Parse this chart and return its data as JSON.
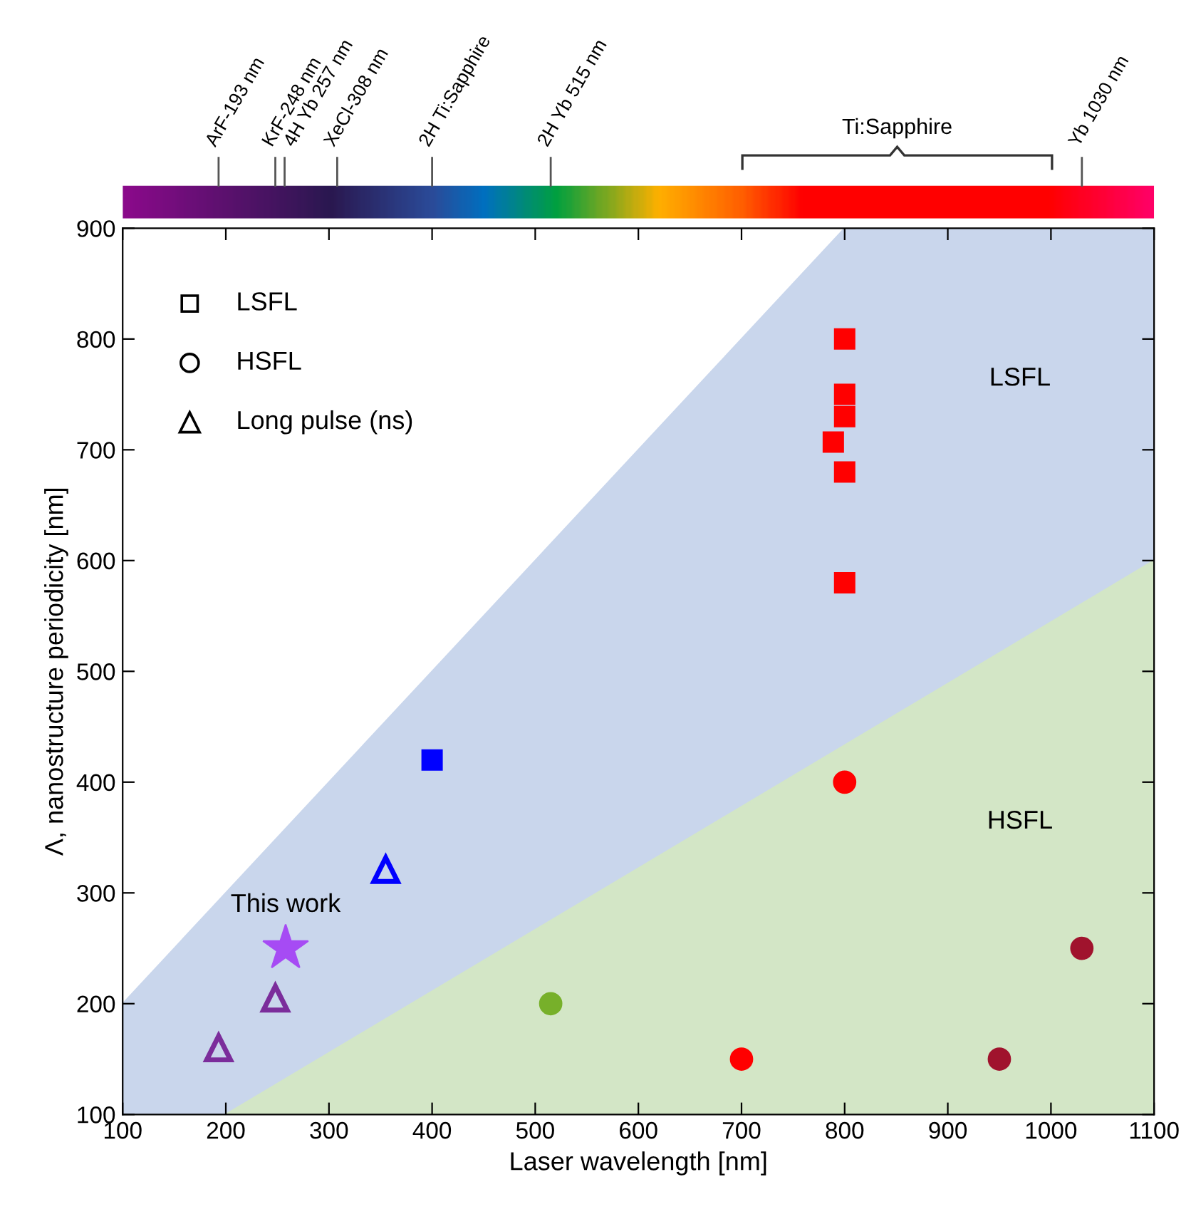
{
  "chart_data": {
    "type": "scatter",
    "xlabel": "Laser wavelength [nm]",
    "ylabel": "Λ, nanostructure periodicity [nm]",
    "xlim": [
      100,
      1100
    ],
    "ylim": [
      100,
      900
    ],
    "xticks": [
      100,
      200,
      300,
      400,
      500,
      600,
      700,
      800,
      900,
      1000,
      1100
    ],
    "yticks": [
      100,
      200,
      300,
      400,
      500,
      600,
      700,
      800,
      900
    ],
    "ref_lines": [
      {
        "axis": "x",
        "value": 193,
        "label": "ArF-193 nm"
      },
      {
        "axis": "x",
        "value": 248,
        "label": "KrF-248 nm"
      },
      {
        "axis": "x",
        "value": 257,
        "label": "4H Yb 257 nm"
      },
      {
        "axis": "x",
        "value": 308,
        "label": "XeCl-308 nm"
      },
      {
        "axis": "x",
        "value": 400,
        "label": "2H Ti:Sapphire"
      },
      {
        "axis": "x",
        "value": 515,
        "label": "2H Yb 515 nm"
      },
      {
        "axis": "x",
        "value": 1030,
        "label": "Yb 1030 nm"
      }
    ],
    "series": [
      {
        "type": "area",
        "color": "#c9d6ec",
        "x": [
          100,
          200,
          800,
          1100
        ],
        "values": [
          200,
          300,
          900,
          900
        ]
      },
      {
        "type": "area",
        "color": "#d3e6c6",
        "x": [
          200,
          1100
        ],
        "values": [
          100,
          600
        ]
      },
      {
        "marker": "square",
        "x": [
          800,
          800,
          800,
          789,
          800,
          800,
          400
        ],
        "values": [
          800,
          750,
          730,
          707,
          680,
          580,
          420
        ],
        "colors": [
          "#ff0000",
          "#ff0000",
          "#ff0000",
          "#ff0000",
          "#ff0000",
          "#ff0000",
          "#0000ff"
        ]
      },
      {
        "marker": "circle",
        "x": [
          800,
          515,
          700,
          950,
          1030
        ],
        "values": [
          400,
          200,
          150,
          150,
          250
        ],
        "colors": [
          "#ff0000",
          "#77b02a",
          "#ff0000",
          "#a0132d",
          "#a0132d"
        ]
      },
      {
        "marker": "triangle",
        "x": [
          355,
          193,
          248
        ],
        "values": [
          321,
          160,
          205
        ],
        "colors": [
          "#0000ff",
          "#7b2d9b",
          "#7b2d9b"
        ]
      },
      {
        "name": "This work",
        "marker": "star",
        "x": [
          258
        ],
        "values": [
          250
        ],
        "colors": [
          "#a64bf4"
        ]
      }
    ],
    "annotations": [
      "LSFL",
      "HSFL",
      "Long pulse (ns)",
      "LSFL",
      "HSFL",
      "Ti:Sapphire"
    ]
  }
}
